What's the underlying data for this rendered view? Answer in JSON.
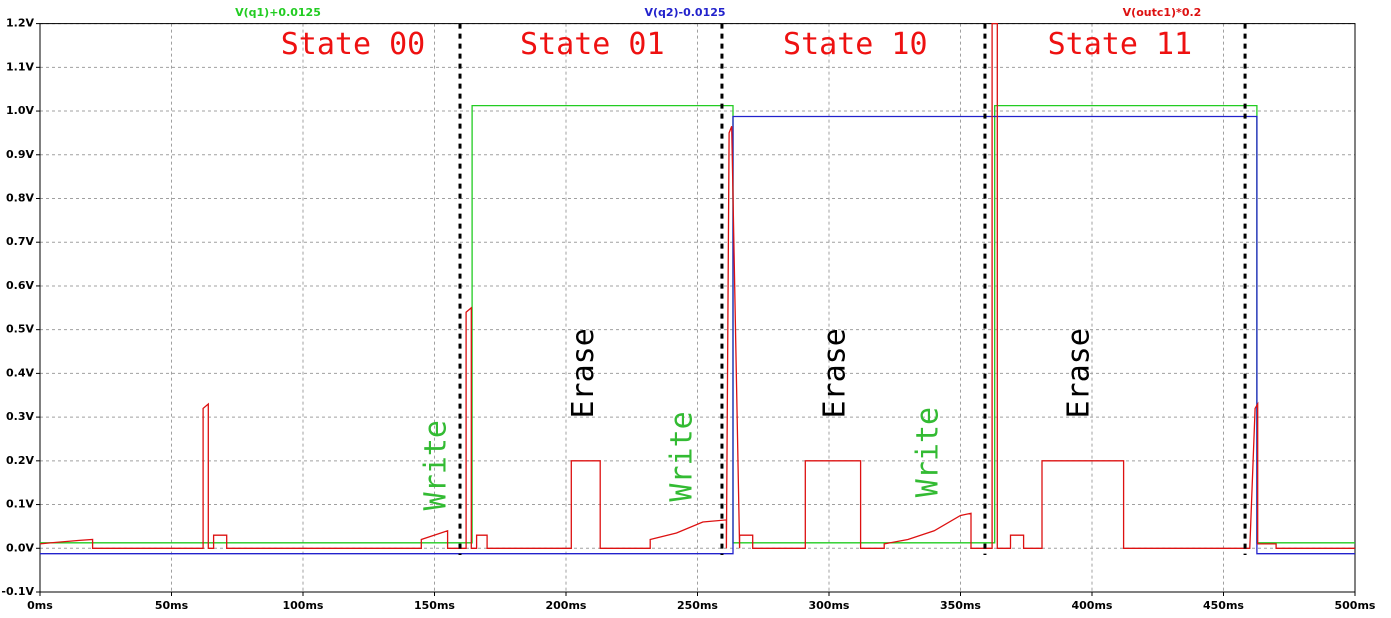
{
  "chart_data": {
    "type": "line",
    "xlim": [
      0,
      500
    ],
    "ylim": [
      -0.1,
      1.2
    ],
    "grid": true,
    "xticks": [
      {
        "value": 0,
        "label": "0ms"
      },
      {
        "value": 50,
        "label": "50ms"
      },
      {
        "value": 100,
        "label": "100ms"
      },
      {
        "value": 150,
        "label": "150ms"
      },
      {
        "value": 200,
        "label": "200ms"
      },
      {
        "value": 250,
        "label": "250ms"
      },
      {
        "value": 300,
        "label": "300ms"
      },
      {
        "value": 350,
        "label": "350ms"
      },
      {
        "value": 400,
        "label": "400ms"
      },
      {
        "value": 450,
        "label": "450ms"
      },
      {
        "value": 500,
        "label": "500ms"
      }
    ],
    "yticks": [
      {
        "value": -0.1,
        "label": "-0.1V"
      },
      {
        "value": 0,
        "label": "0.0V"
      },
      {
        "value": 0.1,
        "label": "0.1V"
      },
      {
        "value": 0.2,
        "label": "0.2V"
      },
      {
        "value": 0.3,
        "label": "0.3V"
      },
      {
        "value": 0.4,
        "label": "0.4V"
      },
      {
        "value": 0.5,
        "label": "0.5V"
      },
      {
        "value": 0.6,
        "label": "0.6V"
      },
      {
        "value": 0.7,
        "label": "0.7V"
      },
      {
        "value": 0.8,
        "label": "0.8V"
      },
      {
        "value": 0.9,
        "label": "0.9V"
      },
      {
        "value": 1.0,
        "label": "1.0V"
      },
      {
        "value": 1.1,
        "label": "1.1V"
      },
      {
        "value": 1.2,
        "label": "1.2V"
      }
    ],
    "series": [
      {
        "name": "V(q1)+0.0125",
        "color": "#22cc22",
        "x": [
          0,
          164.3,
          164.3,
          263.5,
          263.5,
          363,
          363,
          462.7,
          462.7,
          500
        ],
        "values": [
          0.0125,
          0.0125,
          1.0125,
          1.0125,
          0.0125,
          0.0125,
          1.0125,
          1.0125,
          0.0125,
          0.0125
        ]
      },
      {
        "name": "V(q2)-0.0125",
        "color": "#2222cc",
        "x": [
          0,
          263.5,
          263.5,
          462.7,
          462.7,
          500
        ],
        "values": [
          -0.0125,
          -0.0125,
          0.9875,
          0.9875,
          -0.0125,
          -0.0125
        ]
      },
      {
        "name": "V(outc1)*0.2",
        "color": "#dd1111",
        "x": [
          0,
          5,
          15,
          20,
          20,
          62,
          62,
          64,
          64,
          66,
          66,
          71,
          71,
          145,
          145,
          155,
          155,
          162,
          162,
          164,
          164,
          166,
          166,
          170,
          170,
          202,
          202,
          213,
          213,
          232,
          232,
          242,
          252,
          261,
          261,
          262,
          263,
          266,
          266,
          271,
          271,
          291,
          291,
          312,
          312,
          321,
          321,
          330,
          340,
          350,
          354,
          354,
          362,
          362,
          364,
          364,
          369,
          369,
          374,
          374,
          381,
          381,
          412,
          412,
          460,
          462,
          463,
          463,
          470,
          470,
          500
        ],
        "values": [
          0.01,
          0.013,
          0.018,
          0.02,
          0,
          0,
          0.32,
          0.33,
          0,
          0,
          0.03,
          0.03,
          0,
          0,
          0.02,
          0.04,
          0,
          0,
          0.54,
          0.55,
          0,
          0,
          0.03,
          0.03,
          0,
          0,
          0.2,
          0.2,
          0,
          0,
          0.02,
          0.035,
          0.06,
          0.065,
          0,
          0.95,
          0.965,
          0,
          0.03,
          0.03,
          0,
          0,
          0.2,
          0.2,
          0,
          0,
          0.01,
          0.02,
          0.04,
          0.075,
          0.08,
          0,
          0,
          1.2,
          1.2,
          0,
          0,
          0.03,
          0.03,
          0,
          0,
          0.2,
          0.2,
          0,
          0,
          0.32,
          0.33,
          0.01,
          0.01,
          0,
          0
        ]
      }
    ],
    "vlines": [
      159.7,
      259.3,
      359.3,
      458.2
    ],
    "annotations": [
      {
        "text": "State 00",
        "x": 119,
        "y": 1.15,
        "color": "#ee1111",
        "rotate": false
      },
      {
        "text": "State 01",
        "x": 210,
        "y": 1.15,
        "color": "#ee1111",
        "rotate": false
      },
      {
        "text": "State 10",
        "x": 310,
        "y": 1.15,
        "color": "#ee1111",
        "rotate": false
      },
      {
        "text": "State 11",
        "x": 410.6,
        "y": 1.15,
        "color": "#ee1111",
        "rotate": false
      },
      {
        "text": "Write",
        "x": 151,
        "y": 0.19,
        "color": "#33bb33",
        "rotate": true
      },
      {
        "text": "Erase",
        "x": 207,
        "y": 0.4,
        "color": "#000000",
        "rotate": true
      },
      {
        "text": "Write",
        "x": 244.5,
        "y": 0.21,
        "color": "#33bb33",
        "rotate": true
      },
      {
        "text": "Erase",
        "x": 302.7,
        "y": 0.4,
        "color": "#000000",
        "rotate": true
      },
      {
        "text": "Write",
        "x": 338,
        "y": 0.22,
        "color": "#33bb33",
        "rotate": true
      },
      {
        "text": "Erase",
        "x": 395.4,
        "y": 0.4,
        "color": "#000000",
        "rotate": true
      }
    ]
  }
}
